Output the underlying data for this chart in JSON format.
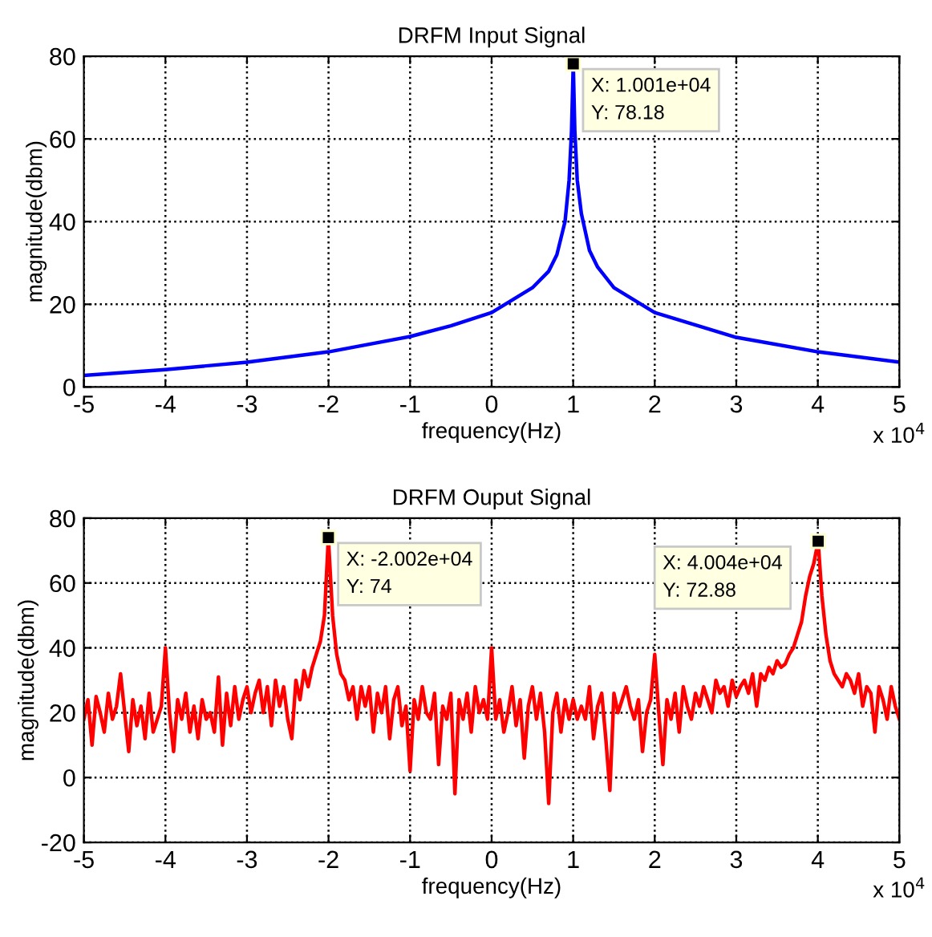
{
  "chart_data": [
    {
      "type": "line",
      "title": "DRFM Input Signal",
      "xlabel": "frequency(Hz)",
      "ylabel": "magnitude(dbm)",
      "xlim": [
        -5,
        5
      ],
      "ylim": [
        0,
        80
      ],
      "xticks": [
        -5,
        -4,
        -3,
        -2,
        -1,
        0,
        1,
        2,
        3,
        4,
        5
      ],
      "yticks": [
        0,
        20,
        40,
        60,
        80
      ],
      "grid": true,
      "series": [
        {
          "color": "#0000ff",
          "x": [
            -5,
            -4,
            -3,
            -2,
            -1,
            -0.5,
            0,
            0.5,
            0.7,
            0.8,
            0.9,
            0.95,
            0.98,
            1.001,
            1.02,
            1.05,
            1.1,
            1.2,
            1.3,
            1.5,
            2,
            2.5,
            3,
            4,
            5
          ],
          "values": [
            2.8,
            4.2,
            6,
            8.5,
            12.2,
            14.8,
            18,
            24,
            28,
            32,
            40,
            50,
            62,
            78.18,
            62,
            50,
            42,
            33,
            29,
            24,
            18,
            15,
            12,
            8.5,
            6
          ]
        }
      ],
      "annotations": [
        {
          "text": "X: 1.001e+04\nY: 78.18",
          "x": 1.001,
          "y": 78.18
        },
        "x 10$^{4}$"
      ]
    },
    {
      "type": "line",
      "title": "DRFM Ouput Signal",
      "xlabel": "frequency(Hz)",
      "ylabel": "magnitude(dbm)",
      "xlim": [
        -5,
        5
      ],
      "ylim": [
        -20,
        80
      ],
      "xticks": [
        -5,
        -4,
        -3,
        -2,
        -1,
        0,
        1,
        2,
        3,
        4,
        5
      ],
      "yticks": [
        -20,
        0,
        20,
        40,
        60,
        80
      ],
      "grid": true,
      "series": [
        {
          "color": "#ff0000",
          "x": [
            -5,
            -4.95,
            -4.9,
            -4.85,
            -4.8,
            -4.75,
            -4.7,
            -4.65,
            -4.6,
            -4.55,
            -4.5,
            -4.45,
            -4.4,
            -4.35,
            -4.3,
            -4.25,
            -4.2,
            -4.15,
            -4.1,
            -4.05,
            -4,
            -3.95,
            -3.9,
            -3.85,
            -3.8,
            -3.75,
            -3.7,
            -3.65,
            -3.6,
            -3.55,
            -3.5,
            -3.45,
            -3.4,
            -3.35,
            -3.3,
            -3.25,
            -3.2,
            -3.15,
            -3.1,
            -3.05,
            -3,
            -2.95,
            -2.9,
            -2.85,
            -2.8,
            -2.75,
            -2.7,
            -2.65,
            -2.6,
            -2.55,
            -2.5,
            -2.45,
            -2.4,
            -2.35,
            -2.3,
            -2.25,
            -2.2,
            -2.15,
            -2.1,
            -2.05,
            -2.002,
            -1.95,
            -1.9,
            -1.85,
            -1.8,
            -1.75,
            -1.7,
            -1.65,
            -1.6,
            -1.55,
            -1.5,
            -1.45,
            -1.4,
            -1.35,
            -1.3,
            -1.25,
            -1.2,
            -1.15,
            -1.1,
            -1.05,
            -1,
            -0.95,
            -0.9,
            -0.85,
            -0.8,
            -0.75,
            -0.7,
            -0.65,
            -0.6,
            -0.55,
            -0.5,
            -0.45,
            -0.4,
            -0.35,
            -0.3,
            -0.25,
            -0.2,
            -0.15,
            -0.1,
            -0.05,
            0,
            0.05,
            0.1,
            0.15,
            0.2,
            0.25,
            0.3,
            0.35,
            0.4,
            0.45,
            0.5,
            0.55,
            0.6,
            0.65,
            0.7,
            0.75,
            0.8,
            0.85,
            0.9,
            0.95,
            1,
            1.05,
            1.1,
            1.15,
            1.2,
            1.25,
            1.3,
            1.35,
            1.4,
            1.45,
            1.5,
            1.55,
            1.6,
            1.65,
            1.7,
            1.75,
            1.8,
            1.85,
            1.9,
            1.95,
            2,
            2.05,
            2.1,
            2.15,
            2.2,
            2.25,
            2.3,
            2.35,
            2.4,
            2.45,
            2.5,
            2.55,
            2.6,
            2.65,
            2.7,
            2.75,
            2.8,
            2.85,
            2.9,
            2.95,
            3,
            3.05,
            3.1,
            3.15,
            3.2,
            3.25,
            3.3,
            3.35,
            3.4,
            3.45,
            3.5,
            3.55,
            3.6,
            3.65,
            3.7,
            3.75,
            3.8,
            3.85,
            3.9,
            3.95,
            4.004,
            4.05,
            4.1,
            4.15,
            4.2,
            4.25,
            4.3,
            4.35,
            4.4,
            4.45,
            4.5,
            4.55,
            4.6,
            4.65,
            4.7,
            4.75,
            4.8,
            4.85,
            4.9,
            4.95,
            5
          ],
          "values": [
            18,
            24,
            10,
            25,
            20,
            14,
            26,
            18,
            22,
            32,
            20,
            8,
            24,
            16,
            22,
            12,
            26,
            14,
            18,
            22,
            40,
            20,
            8,
            24,
            18,
            26,
            14,
            22,
            12,
            24,
            18,
            20,
            14,
            31,
            10,
            26,
            16,
            28,
            18,
            24,
            28,
            20,
            26,
            30,
            20,
            28,
            16,
            30,
            22,
            28,
            18,
            12,
            30,
            24,
            33,
            28,
            34,
            38,
            42,
            50,
            74,
            50,
            38,
            32,
            30,
            24,
            28,
            18,
            28,
            22,
            28,
            14,
            26,
            20,
            28,
            12,
            24,
            28,
            16,
            22,
            2,
            24,
            18,
            28,
            20,
            18,
            26,
            4,
            22,
            18,
            26,
            -5,
            24,
            18,
            26,
            14,
            28,
            20,
            24,
            18,
            40,
            18,
            24,
            14,
            20,
            28,
            16,
            24,
            6,
            22,
            28,
            18,
            26,
            14,
            -8,
            20,
            26,
            14,
            24,
            18,
            24,
            18,
            22,
            18,
            28,
            12,
            22,
            26,
            12,
            -4,
            26,
            20,
            24,
            28,
            22,
            18,
            24,
            8,
            20,
            24,
            38,
            20,
            4,
            24,
            18,
            26,
            14,
            28,
            22,
            18,
            26,
            22,
            28,
            24,
            20,
            30,
            26,
            28,
            22,
            30,
            25,
            28,
            30,
            26,
            32,
            22,
            32,
            30,
            34,
            32,
            36,
            34,
            35,
            38,
            40,
            44,
            48,
            56,
            62,
            66,
            72.88,
            56,
            44,
            36,
            32,
            30,
            28,
            32,
            30,
            26,
            32,
            22,
            28,
            26,
            14,
            28,
            24,
            18,
            28,
            22,
            18
          ]
        }
      ],
      "annotations": [
        {
          "text": "X: -2.002e+04\nY: 74",
          "x": -2.002,
          "y": 74
        },
        {
          "text": "X: 4.004e+04\nY: 72.88",
          "x": 4.004,
          "y": 72.88
        },
        "x 10$^{4}$"
      ]
    }
  ]
}
